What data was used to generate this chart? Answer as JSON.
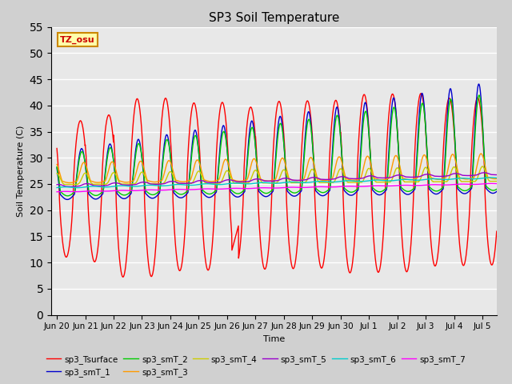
{
  "title": "SP3 Soil Temperature",
  "xlabel": "Time",
  "ylabel": "Soil Temperature (C)",
  "ylim": [
    0,
    55
  ],
  "yticks": [
    0,
    5,
    10,
    15,
    20,
    25,
    30,
    35,
    40,
    45,
    50,
    55
  ],
  "bg_color": "#e8e8e8",
  "tz_label": "TZ_osu",
  "series_colors": {
    "sp3_Tsurface": "#ff0000",
    "sp3_smT_1": "#0000cc",
    "sp3_smT_2": "#00cc00",
    "sp3_smT_3": "#ff9900",
    "sp3_smT_4": "#cccc00",
    "sp3_smT_5": "#9900cc",
    "sp3_smT_6": "#00cccc",
    "sp3_smT_7": "#ff00ff"
  },
  "tick_labels": [
    "Jun 20",
    "Jun 21",
    "Jun 22",
    "Jun 23",
    "Jun 24",
    "Jun 25",
    "Jun 26",
    "Jun 27",
    "Jun 28",
    "Jun 29",
    "Jun 30",
    "Jul 1",
    "Jul 2",
    "Jul 3",
    "Jul 4",
    "Jul 5"
  ],
  "tick_positions": [
    0,
    1,
    2,
    3,
    4,
    5,
    6,
    7,
    8,
    9,
    10,
    11,
    12,
    13,
    14,
    15
  ]
}
